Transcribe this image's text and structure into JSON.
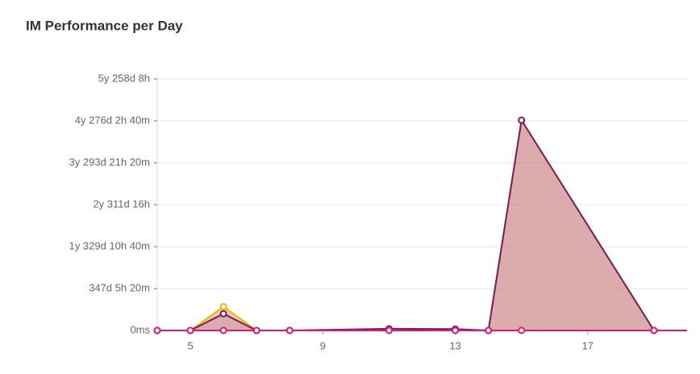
{
  "chart_data": {
    "type": "area",
    "title": "IM Performance per Day",
    "x": [
      4,
      5,
      6,
      7,
      8,
      11,
      13,
      14,
      15,
      19,
      20
    ],
    "xlim": [
      4,
      20
    ],
    "xticks": [
      5,
      9,
      13,
      17
    ],
    "ylim": [
      0,
      180000000000
    ],
    "yticks": [
      {
        "value": 0,
        "label": "0ms"
      },
      {
        "value": 30000000000,
        "label": "347d 5h 20m"
      },
      {
        "value": 60000000000,
        "label": "1y 329d 10h 40m"
      },
      {
        "value": 90000000000,
        "label": "2y 311d 16h"
      },
      {
        "value": 120000000000,
        "label": "3y 293d 21h 20m"
      },
      {
        "value": 150000000000,
        "label": "4y 276d 2h 40m"
      },
      {
        "value": 180000000000,
        "label": "5y 258d 8h"
      }
    ],
    "grid": true,
    "series": [
      {
        "color": "#f0b400",
        "fill": "rgba(226,130,60,0.42)",
        "values": [
          0,
          0,
          17000000000,
          0,
          0,
          0,
          0,
          0,
          150500000000,
          0,
          0
        ]
      },
      {
        "color": "#7a1a60",
        "fill": "rgba(160,90,170,0.28)",
        "values": [
          0,
          0,
          12000000000,
          0,
          0,
          1200000000,
          1000000000,
          0,
          150500000000,
          0,
          0
        ]
      },
      {
        "color": "#e0167e",
        "fill": "rgba(224,22,126,0.1)",
        "values": [
          0,
          0,
          0,
          0,
          0,
          0,
          0,
          0,
          0,
          0,
          0
        ]
      }
    ]
  }
}
